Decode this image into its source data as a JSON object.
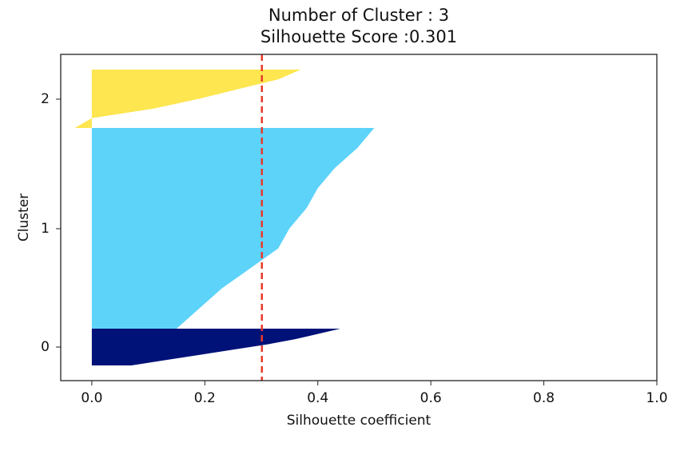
{
  "chart_data": {
    "type": "silhouette",
    "title": "Number of Cluster : 3",
    "subtitle": "Silhouette Score :0.301",
    "x_label": "Silhouette coefficient",
    "y_label": "Cluster",
    "xlim": [
      -0.055,
      1.0
    ],
    "xticks": [
      {
        "value": 0,
        "label": "0.0"
      },
      {
        "value": 0.2,
        "label": "0.2"
      },
      {
        "value": 0.4,
        "label": "0.4"
      },
      {
        "value": 0.6,
        "label": "0.6"
      },
      {
        "value": 0.8,
        "label": "0.8"
      },
      {
        "value": 1.0,
        "label": "1.0"
      }
    ],
    "ylim": [
      -19,
      389
    ],
    "yticks": [
      {
        "value": 23,
        "label": "0"
      },
      {
        "value": 171,
        "label": "1"
      },
      {
        "value": 333,
        "label": "2"
      }
    ],
    "mean_score": 0.301,
    "mean_color": "#e8392a",
    "series": [
      {
        "color": "#001178",
        "size": 46,
        "values": [
          0.07,
          0.13,
          0.19,
          0.25,
          0.31,
          0.36,
          0.4,
          0.44
        ]
      },
      {
        "color": "#5dd3fa",
        "size": 251,
        "values": [
          0.15,
          0.19,
          0.23,
          0.28,
          0.33,
          0.35,
          0.38,
          0.4,
          0.43,
          0.47,
          0.5
        ]
      },
      {
        "color": "#fde64f",
        "size": 73,
        "values": [
          -0.03,
          0,
          0.11,
          0.19,
          0.26,
          0.33,
          0.37
        ]
      }
    ]
  }
}
